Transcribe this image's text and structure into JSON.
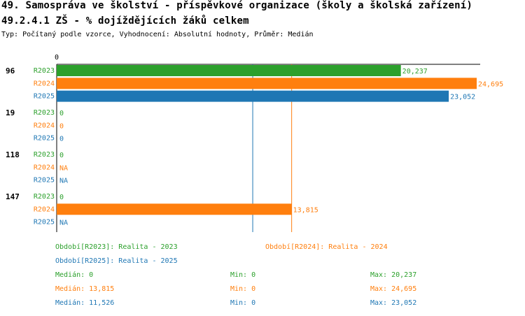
{
  "header": {
    "title_line1": "49. Samospráva ve školství - příspěvkové organizace (školy a školská zařízení)",
    "title_line2": "49.2.4.1 ZŠ - % dojíždějících žáků celkem",
    "subtitle": "Typ: Počítaný podle vzorce, Vyhodnocení: Absolutní hodnoty, Průměr: Medián"
  },
  "colors": {
    "R2023": "#2ca02c",
    "R2024": "#ff7f0e",
    "R2025": "#1f77b4",
    "axis": "#000000"
  },
  "chart_data": {
    "type": "bar",
    "orientation": "horizontal",
    "xlim": [
      0,
      24.695
    ],
    "x_tick_labels": [
      "0"
    ],
    "categories": [
      "96",
      "19",
      "118",
      "147"
    ],
    "series": [
      {
        "name": "R2023",
        "values": [
          20.237,
          0,
          0,
          0
        ],
        "labels": [
          "20,237",
          "0",
          "0",
          "0"
        ]
      },
      {
        "name": "R2024",
        "values": [
          24.695,
          0,
          null,
          13.815
        ],
        "labels": [
          "24,695",
          "0",
          "NA",
          "13,815"
        ]
      },
      {
        "name": "R2025",
        "values": [
          23.052,
          0,
          null,
          null
        ],
        "labels": [
          "23,052",
          "0",
          "NA",
          "NA"
        ]
      }
    ],
    "reference_lines": [
      {
        "series": "R2025",
        "value": 11.526,
        "label": "Medián R2025"
      },
      {
        "series": "R2024",
        "value": 13.815,
        "label": "Medián R2024"
      }
    ]
  },
  "legend": {
    "periods": {
      "r2023": "Období[R2023]: Realita - 2023",
      "r2024": "Období[R2024]: Realita - 2024",
      "r2025": "Období[R2025]: Realita - 2025"
    },
    "stats": [
      {
        "series": "R2023",
        "median": "Medián: 0",
        "min": "Min: 0",
        "max": "Max: 20,237"
      },
      {
        "series": "R2024",
        "median": "Medián: 13,815",
        "min": "Min: 0",
        "max": "Max: 24,695"
      },
      {
        "series": "R2025",
        "median": "Medián: 11,526",
        "min": "Min: 0",
        "max": "Max: 23,052"
      }
    ]
  }
}
